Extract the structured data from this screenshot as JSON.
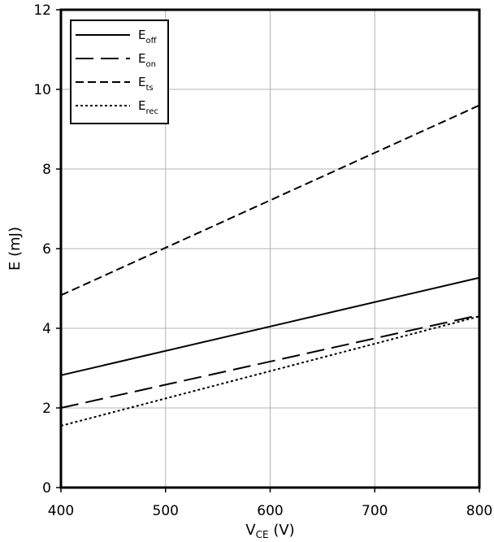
{
  "chart_data": {
    "type": "line",
    "xlabel": {
      "main": "V",
      "sub": "CE",
      "unit": " (V)"
    },
    "ylabel": "E (mJ)",
    "xlim": [
      400,
      800
    ],
    "ylim": [
      0,
      12
    ],
    "xticks": [
      400,
      500,
      600,
      700,
      800
    ],
    "yticks": [
      0,
      2,
      4,
      6,
      8,
      10,
      12
    ],
    "grid": true,
    "legend_position": "top-left",
    "x": [
      400,
      800
    ],
    "series": [
      {
        "name": "E",
        "sub": "off",
        "values": [
          2.82,
          5.27
        ],
        "dash": "solid"
      },
      {
        "name": "E",
        "sub": "on",
        "values": [
          2.0,
          4.33
        ],
        "dash": "long-dash"
      },
      {
        "name": "E",
        "sub": "ts",
        "values": [
          4.83,
          9.6
        ],
        "dash": "dash"
      },
      {
        "name": "E",
        "sub": "rec",
        "values": [
          1.55,
          4.3
        ],
        "dash": "dot"
      }
    ]
  }
}
